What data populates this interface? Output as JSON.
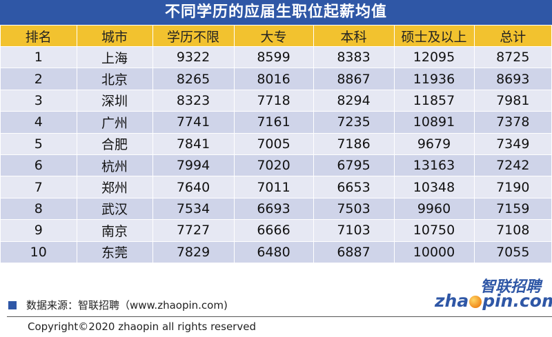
{
  "title": "不同学历的应届生职位起薪均值",
  "table": {
    "headers": [
      "排名",
      "城市",
      "学历不限",
      "大专",
      "本科",
      "硕士及以上",
      "总计"
    ],
    "rows": [
      [
        "1",
        "上海",
        "9322",
        "8599",
        "8383",
        "12095",
        "8725"
      ],
      [
        "2",
        "北京",
        "8265",
        "8016",
        "8867",
        "11936",
        "8693"
      ],
      [
        "3",
        "深圳",
        "8323",
        "7718",
        "8294",
        "11857",
        "7981"
      ],
      [
        "4",
        "广州",
        "7741",
        "7161",
        "7235",
        "10891",
        "7378"
      ],
      [
        "5",
        "合肥",
        "7841",
        "7005",
        "7186",
        "9679",
        "7349"
      ],
      [
        "6",
        "杭州",
        "7994",
        "7020",
        "6795",
        "13163",
        "7242"
      ],
      [
        "7",
        "郑州",
        "7640",
        "7011",
        "6653",
        "10348",
        "7190"
      ],
      [
        "8",
        "武汉",
        "7534",
        "6693",
        "7503",
        "9960",
        "7159"
      ],
      [
        "9",
        "南京",
        "7727",
        "6666",
        "7103",
        "10750",
        "7108"
      ],
      [
        "10",
        "东莞",
        "7829",
        "6480",
        "6887",
        "10000",
        "7055"
      ]
    ]
  },
  "source": "数据来源：智联招聘（www.zhaopin.com)",
  "copyright": "Copyright©2020 zhaopin all rights reserved",
  "logo": {
    "cn": "智联招聘",
    "en_left": "zha",
    "en_right": "pin.com"
  },
  "colors": {
    "title_bg": "#2f57a6",
    "header_bg": "#f2c22f",
    "row_light": "#e6e8f3",
    "row_dark": "#cfd4e9"
  }
}
